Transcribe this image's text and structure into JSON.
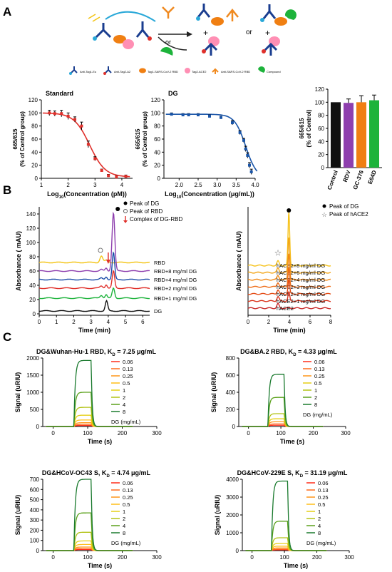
{
  "panels": {
    "A": "A",
    "B": "B",
    "C": "C"
  },
  "schematic": {
    "or1": "or",
    "or2": "or",
    "plus1": "+",
    "plus2": "+",
    "plus3": "+",
    "legend": [
      "Anti-Tag1-Eu",
      "Anti-Tag2-A2",
      "Tag1-SARS-CoV-2 RBD",
      "Tag2-ACE2",
      "Anti-SARS-CoV-2 RBD",
      "Compound"
    ]
  },
  "chart_data": [
    {
      "id": "A1",
      "type": "scatter",
      "title": "Standard",
      "xlabel": "Log10(Concentration (pM))",
      "ylabel": [
        "665/615",
        "(% of Control group)"
      ],
      "xlim": [
        1,
        4.4
      ],
      "ylim": [
        0,
        120
      ],
      "xticks": [
        1,
        2,
        3,
        4
      ],
      "yticks": [
        0,
        20,
        40,
        60,
        80,
        100,
        120
      ],
      "points": [
        [
          1.3,
          100
        ],
        [
          1.5,
          99
        ],
        [
          1.75,
          99
        ],
        [
          2.0,
          95
        ],
        [
          2.25,
          90
        ],
        [
          2.5,
          80
        ],
        [
          2.75,
          52
        ],
        [
          3.0,
          30
        ],
        [
          3.25,
          12
        ],
        [
          3.5,
          4
        ],
        [
          3.8,
          2
        ],
        [
          4.15,
          3
        ]
      ],
      "errors": [
        4,
        4,
        5,
        5,
        4,
        6,
        5,
        3,
        2,
        2,
        2,
        2
      ],
      "fit": {
        "top": 100,
        "bottom": 2,
        "ic50": 2.8,
        "hill": 1.5
      },
      "color": "#e0302b"
    },
    {
      "id": "A2",
      "type": "scatter",
      "title": "DG",
      "xlabel": "Log10(Concentration (μg/mL))",
      "ylabel": [
        "665/615",
        "(% of Control group)"
      ],
      "xlim": [
        1.6,
        4.0
      ],
      "ylim": [
        0,
        120
      ],
      "xticks": [
        2.0,
        2.5,
        3.0,
        3.5,
        4.0
      ],
      "xticklabels": [
        "2.0",
        "2.5",
        "3.0",
        "3.5",
        "4.0"
      ],
      "yticks": [
        0,
        20,
        40,
        60,
        80,
        100,
        120
      ],
      "points": [
        [
          1.8,
          98
        ],
        [
          2.1,
          97
        ],
        [
          2.25,
          97
        ],
        [
          2.5,
          97
        ],
        [
          2.8,
          95
        ],
        [
          3.1,
          93
        ],
        [
          3.4,
          85
        ],
        [
          3.6,
          70
        ],
        [
          3.7,
          58
        ],
        [
          3.75,
          45
        ],
        [
          3.8,
          35
        ],
        [
          3.85,
          20
        ],
        [
          3.9,
          10
        ]
      ],
      "errors": [
        2,
        2,
        2,
        2,
        2,
        2,
        3,
        3,
        3,
        4,
        4,
        4,
        4
      ],
      "fit": {
        "top": 98,
        "bottom": 0,
        "ic50": 3.75,
        "hill": 3.0
      },
      "color": "#1a55a8"
    },
    {
      "id": "A3",
      "type": "bar",
      "ylabel": [
        "665/615",
        "(% of Control)"
      ],
      "categories": [
        "Control",
        "RDV",
        "GC-376",
        "E64D"
      ],
      "values": [
        100,
        99,
        100,
        103
      ],
      "errors": [
        0,
        6,
        10,
        8
      ],
      "colors": [
        "#111111",
        "#8e3fae",
        "#f07f12",
        "#1db33b"
      ],
      "ylim": [
        0,
        120
      ],
      "yticks": [
        0,
        20,
        40,
        60,
        80,
        100,
        120
      ]
    },
    {
      "id": "B1",
      "type": "line",
      "xlabel": "Time (min)",
      "ylabel": "Absorbance ( mAU)",
      "xlim": [
        0,
        6.4
      ],
      "ylim": [
        -2,
        150
      ],
      "xticks": [
        0,
        1,
        2,
        3,
        4,
        5,
        6
      ],
      "yticks": [
        0,
        20,
        40,
        60,
        80,
        100,
        120,
        140
      ],
      "legend": [
        {
          "marker": "dot",
          "label": "Peak of DG"
        },
        {
          "marker": "open-circle",
          "label": "Peak of RBD"
        },
        {
          "marker": "red-arrow",
          "label": "Complex of DG-RBD"
        }
      ],
      "series": [
        {
          "name": "RBD",
          "offset": 72,
          "color": "#f3c311",
          "peaks": [
            [
              3.6,
              9,
              0.08
            ],
            [
              3.9,
              3,
              0.1
            ]
          ]
        },
        {
          "name": "RBD+8 mg/ml DG",
          "offset": 60,
          "color": "#8e3fae",
          "peaks": [
            [
              3.6,
              2,
              0.08
            ],
            [
              3.88,
              4,
              0.06
            ],
            [
              4.3,
              82,
              0.08
            ]
          ]
        },
        {
          "name": "RBD+4 mg/ml DG",
          "offset": 48,
          "color": "#1a4ca8",
          "peaks": [
            [
              3.6,
              2,
              0.08
            ],
            [
              3.88,
              4,
              0.06
            ],
            [
              4.3,
              38,
              0.07
            ]
          ]
        },
        {
          "name": "RBD+2 mg/ml DG",
          "offset": 36,
          "color": "#e0302b",
          "peaks": [
            [
              3.6,
              3,
              0.08
            ],
            [
              3.88,
              5,
              0.06
            ],
            [
              4.3,
              24,
              0.07
            ]
          ]
        },
        {
          "name": "RBD+1 mg/ml DG",
          "offset": 22,
          "color": "#1db33b",
          "peaks": [
            [
              3.6,
              4,
              0.08
            ],
            [
              3.88,
              5,
              0.06
            ],
            [
              4.3,
              14,
              0.07
            ]
          ]
        },
        {
          "name": "DG",
          "offset": 4,
          "color": "#111111",
          "peaks": [
            [
              3.9,
              14,
              0.07
            ]
          ]
        }
      ]
    },
    {
      "id": "B2",
      "type": "line",
      "xlabel": "Time (min)",
      "ylabel": "Absorbance ( mAU)",
      "xlim": [
        0,
        8
      ],
      "xticks": [
        0,
        2,
        4,
        6,
        8
      ],
      "legend": [
        {
          "marker": "dot",
          "label": "Peak of DG"
        },
        {
          "marker": "open-star",
          "label": "Peak of hACE2"
        }
      ],
      "series": [
        {
          "name": "hACE2+8 mg/ml DG",
          "offset": 54,
          "color": "#f6c21a",
          "peaks": [
            [
              2.9,
              5,
              0.1
            ],
            [
              3.95,
              60,
              0.08
            ]
          ]
        },
        {
          "name": "hACE2+6 mg/ml DG",
          "offset": 46,
          "color": "#f3a61a",
          "peaks": [
            [
              2.9,
              5,
              0.1
            ],
            [
              3.95,
              40,
              0.08
            ]
          ]
        },
        {
          "name": "hACE2+4 mg/ml DG",
          "offset": 38,
          "color": "#f28a17",
          "peaks": [
            [
              2.9,
              5,
              0.1
            ],
            [
              3.95,
              30,
              0.08
            ]
          ]
        },
        {
          "name": "hACE2+3 mg/ml DG",
          "offset": 30,
          "color": "#ee6b15",
          "peaks": [
            [
              2.9,
              5,
              0.1
            ],
            [
              3.95,
              22,
              0.08
            ]
          ]
        },
        {
          "name": "hACE2+2 mg/ml DG",
          "offset": 22,
          "color": "#e44a13",
          "peaks": [
            [
              2.9,
              5,
              0.1
            ],
            [
              3.95,
              16,
              0.08
            ]
          ]
        },
        {
          "name": "hACE2+1 mg/ml DG",
          "offset": 14,
          "color": "#d9331c",
          "peaks": [
            [
              2.9,
              5,
              0.1
            ],
            [
              3.95,
              10,
              0.08
            ]
          ]
        },
        {
          "name": "hACE2",
          "offset": 6,
          "color": "#c92a2a",
          "peaks": [
            [
              2.9,
              5,
              0.1
            ]
          ]
        }
      ]
    },
    {
      "id": "C1",
      "type": "line",
      "title": "DG&Wuhan-Hu-1 RBD, KD = 7.25 μg/mL",
      "xlabel": "Time (s)",
      "ylabel": "Signal (uRIU)",
      "xlim": [
        -30,
        300
      ],
      "ylim": [
        0,
        2000
      ],
      "xticks": [
        0,
        100,
        200,
        300
      ],
      "yticks": [
        0,
        500,
        1000,
        1500,
        2000
      ],
      "legend_title": "DG (mg/mL)",
      "series": [
        {
          "name": "0.06",
          "plateau": 30
        },
        {
          "name": "0.13",
          "plateau": 60
        },
        {
          "name": "0.25",
          "plateau": 110
        },
        {
          "name": "0.5",
          "plateau": 190
        },
        {
          "name": "1",
          "plateau": 330
        },
        {
          "name": "2",
          "plateau": 560
        },
        {
          "name": "4",
          "plateau": 1000
        },
        {
          "name": "8",
          "plateau": 1930
        }
      ]
    },
    {
      "id": "C2",
      "type": "line",
      "title": "DG&BA.2 RBD, KD = 4.33 μg/mL",
      "xlabel": "Time (s)",
      "ylabel": "Signal (uRIU)",
      "xlim": [
        -30,
        300
      ],
      "ylim": [
        0,
        800
      ],
      "xticks": [
        0,
        100,
        200,
        300
      ],
      "yticks": [
        0,
        200,
        400,
        600,
        800
      ],
      "legend_title": "DG (mg/mL)",
      "series": [
        {
          "name": "0.06",
          "plateau": 15
        },
        {
          "name": "0.13",
          "plateau": 30
        },
        {
          "name": "0.25",
          "plateau": 55
        },
        {
          "name": "0.5",
          "plateau": 90
        },
        {
          "name": "1",
          "plateau": 150
        },
        {
          "name": "2",
          "plateau": 340
        },
        {
          "name": "8",
          "plateau": 610
        }
      ]
    },
    {
      "id": "C3",
      "type": "line",
      "title": "DG&HCoV-OC43 S, KD = 4.74 μg/mL",
      "xlabel": "Time (s)",
      "ylabel": "Signal (uRIU)",
      "xlim": [
        -30,
        300
      ],
      "ylim": [
        0,
        700
      ],
      "xticks": [
        0,
        100,
        200,
        300
      ],
      "yticks": [
        0,
        100,
        200,
        300,
        400,
        500,
        600,
        700
      ],
      "legend_title": "DG (mg/mL)",
      "series": [
        {
          "name": "0.06",
          "plateau": 10
        },
        {
          "name": "0.13",
          "plateau": 20
        },
        {
          "name": "0.25",
          "plateau": 35
        },
        {
          "name": "0.5",
          "plateau": 60
        },
        {
          "name": "1",
          "plateau": 95
        },
        {
          "name": "2",
          "plateau": 180
        },
        {
          "name": "4",
          "plateau": 370
        },
        {
          "name": "8",
          "plateau": 700
        }
      ]
    },
    {
      "id": "C4",
      "type": "line",
      "title": "DG&HCoV-229E S, KD = 31.19 μg/mL",
      "xlabel": "Time (s)",
      "ylabel": "Signal (uRIU)",
      "xlim": [
        -30,
        300
      ],
      "ylim": [
        0,
        4000
      ],
      "xticks": [
        0,
        100,
        200,
        300
      ],
      "yticks": [
        0,
        1000,
        2000,
        3000,
        4000
      ],
      "legend_title": "DG (mg/mL)",
      "series": [
        {
          "name": "0.06",
          "plateau": 40
        },
        {
          "name": "0.13",
          "plateau": 80
        },
        {
          "name": "0.25",
          "plateau": 150
        },
        {
          "name": "0.5",
          "plateau": 250
        },
        {
          "name": "1",
          "plateau": 400
        },
        {
          "name": "2",
          "plateau": 720
        },
        {
          "name": "4",
          "plateau": 1650
        },
        {
          "name": "8",
          "plateau": 3900
        }
      ]
    }
  ]
}
